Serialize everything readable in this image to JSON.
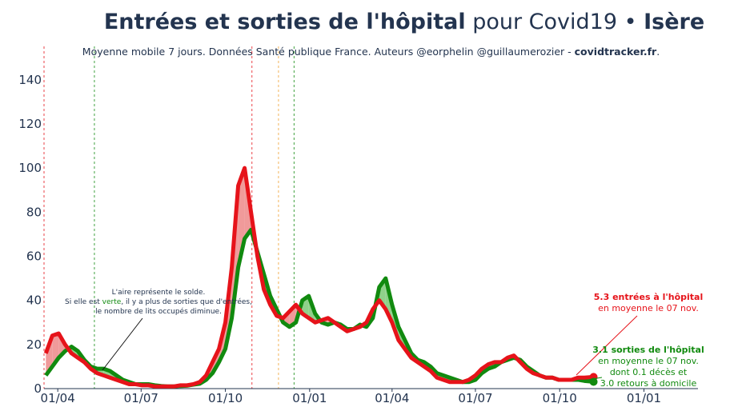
{
  "title": {
    "bold1": "Entrées et sorties de l'hôpital",
    "normal": " pour Covid19 • ",
    "bold2": "Isère"
  },
  "subtitle": {
    "text": "Moyenne mobile 7 jours. Données Santé publique France. Auteurs @eorphelin @guillaumerozier - ",
    "link": "covidtracker.fr",
    "end": "."
  },
  "colors": {
    "entrees": "#e6131a",
    "sorties": "#118a0f",
    "fill_pos": "#f09a9a",
    "fill_neg": "#8fd18a",
    "axis": "#23344f"
  },
  "chart_data": {
    "type": "line",
    "x": [
      "2020-03-19",
      "2020-03-26",
      "2020-04-02",
      "2020-04-09",
      "2020-04-16",
      "2020-04-23",
      "2020-04-30",
      "2020-05-07",
      "2020-05-14",
      "2020-05-21",
      "2020-05-28",
      "2020-06-04",
      "2020-06-11",
      "2020-06-18",
      "2020-06-25",
      "2020-07-02",
      "2020-07-09",
      "2020-07-16",
      "2020-07-23",
      "2020-07-30",
      "2020-08-06",
      "2020-08-13",
      "2020-08-20",
      "2020-08-27",
      "2020-09-03",
      "2020-09-10",
      "2020-09-17",
      "2020-09-24",
      "2020-10-01",
      "2020-10-08",
      "2020-10-15",
      "2020-10-22",
      "2020-10-29",
      "2020-11-05",
      "2020-11-12",
      "2020-11-19",
      "2020-11-26",
      "2020-12-03",
      "2020-12-10",
      "2020-12-17",
      "2020-12-24",
      "2020-12-31",
      "2021-01-07",
      "2021-01-14",
      "2021-01-21",
      "2021-01-28",
      "2021-02-04",
      "2021-02-11",
      "2021-02-18",
      "2021-02-25",
      "2021-03-04",
      "2021-03-11",
      "2021-03-18",
      "2021-03-25",
      "2021-04-01",
      "2021-04-08",
      "2021-04-15",
      "2021-04-22",
      "2021-04-29",
      "2021-05-06",
      "2021-05-13",
      "2021-05-20",
      "2021-05-27",
      "2021-06-03",
      "2021-06-10",
      "2021-06-17",
      "2021-06-24",
      "2021-07-01",
      "2021-07-08",
      "2021-07-15",
      "2021-07-22",
      "2021-07-29",
      "2021-08-05",
      "2021-08-12",
      "2021-08-19",
      "2021-08-26",
      "2021-09-02",
      "2021-09-09",
      "2021-09-16",
      "2021-09-23",
      "2021-09-30",
      "2021-10-07",
      "2021-10-14",
      "2021-10-21",
      "2021-10-28",
      "2021-11-07"
    ],
    "series": [
      {
        "name": "entrées",
        "values": [
          16,
          24,
          25,
          20,
          16,
          14,
          12,
          9,
          7,
          6,
          5,
          4,
          3,
          2,
          2,
          1.5,
          1.5,
          1,
          1,
          1,
          1,
          1.5,
          1.5,
          2,
          3,
          6,
          12,
          18,
          30,
          55,
          92,
          100,
          80,
          60,
          45,
          38,
          33,
          32,
          35,
          38,
          34,
          32,
          30,
          31,
          32,
          30,
          28,
          26,
          27,
          28,
          30,
          36,
          40,
          36,
          30,
          22,
          18,
          14,
          12,
          10,
          8,
          5,
          4,
          3,
          3,
          3,
          4,
          6,
          9,
          11,
          12,
          12,
          14,
          15,
          12,
          9,
          7,
          6,
          5,
          5,
          4,
          4,
          4,
          5,
          5,
          5.3
        ]
      },
      {
        "name": "sorties",
        "values": [
          6,
          10,
          14,
          17,
          19,
          17,
          13,
          10,
          9,
          9,
          8,
          6,
          4,
          3,
          2,
          2,
          2,
          1.5,
          1.2,
          1,
          1,
          1.2,
          1.3,
          1.8,
          2.2,
          4,
          7,
          12,
          18,
          32,
          55,
          68,
          72,
          62,
          52,
          42,
          36,
          30,
          28,
          30,
          40,
          42,
          34,
          30,
          29,
          30,
          29,
          27,
          27,
          29,
          28,
          32,
          46,
          50,
          38,
          28,
          22,
          16,
          13,
          12,
          10,
          7,
          6,
          5,
          4,
          3,
          3,
          4,
          7,
          9,
          10,
          12,
          13,
          14,
          13,
          10,
          8,
          6,
          5,
          5,
          4,
          4,
          4,
          4,
          3.5,
          3.1
        ]
      }
    ],
    "ylim": [
      0,
      145
    ],
    "yticks": [
      0,
      20,
      40,
      60,
      80,
      100,
      120,
      140
    ],
    "xticks": [
      {
        "date": "2020-04-01",
        "label": "01/04"
      },
      {
        "date": "2020-07-01",
        "label": "01/07"
      },
      {
        "date": "2020-10-01",
        "label": "01/10"
      },
      {
        "date": "2021-01-01",
        "label": "01/01"
      },
      {
        "date": "2021-04-01",
        "label": "01/04"
      },
      {
        "date": "2021-07-01",
        "label": "01/07"
      },
      {
        "date": "2021-10-01",
        "label": "01/10"
      },
      {
        "date": "2022-01-01",
        "label": "01/01"
      }
    ],
    "xlim": [
      "2020-03-17",
      "2022-03-01"
    ],
    "vlines": [
      {
        "date": "2020-03-17",
        "color": "#e6131a"
      },
      {
        "date": "2020-05-11",
        "color": "#118a0f"
      },
      {
        "date": "2020-10-30",
        "color": "#e6131a"
      },
      {
        "date": "2020-11-28",
        "color": "#f0a030"
      },
      {
        "date": "2020-12-15",
        "color": "#118a0f"
      }
    ],
    "grid": false
  },
  "annotations": {
    "left": [
      "L'aire représente le solde.",
      "Si elle est ",
      "verte",
      ", il y a plus de sorties que d'entrées,",
      "le nombre de lits occupés diminue."
    ],
    "entrees": [
      "5.3 entrées à l'hôpital",
      "en moyenne le 07 nov."
    ],
    "sorties": [
      "3.1 sorties de l'hôpital",
      "en moyenne le 07 nov.",
      "dont 0.1 décès et",
      "3.0 retours à domicile"
    ]
  }
}
